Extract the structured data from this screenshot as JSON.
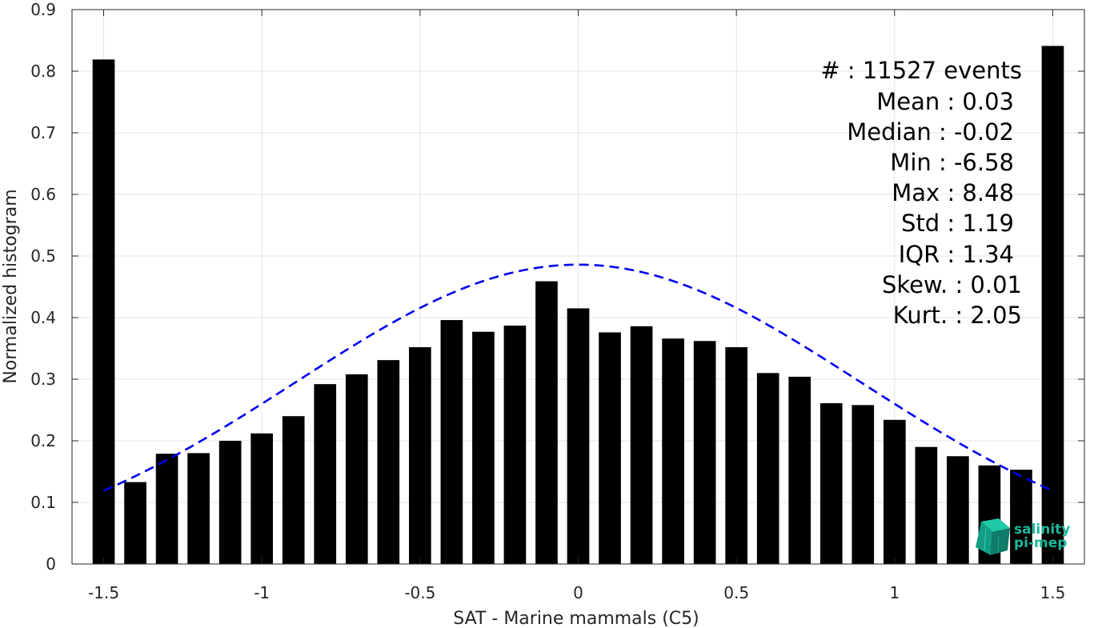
{
  "chart_data": {
    "type": "bar",
    "xlabel": "SAT - Marine mammals (C5)",
    "ylabel": "Normalized histogram",
    "xlim": [
      -1.6,
      1.6
    ],
    "ylim": [
      0,
      0.9
    ],
    "grid": true,
    "x_ticks": [
      -1.5,
      -1,
      -0.5,
      0,
      0.5,
      1,
      1.5
    ],
    "x_tick_labels": [
      "-1.5",
      "-1",
      "-0.5",
      "0",
      "0.5",
      "1",
      "1.5"
    ],
    "y_ticks": [
      0,
      0.1,
      0.2,
      0.3,
      0.4,
      0.5,
      0.6,
      0.7,
      0.8,
      0.9
    ],
    "y_tick_labels": [
      "0",
      "0.1",
      "0.2",
      "0.3",
      "0.4",
      "0.5",
      "0.6",
      "0.7",
      "0.8",
      "0.9"
    ],
    "bar_color": "#000000",
    "bar_width": 0.07,
    "bars": {
      "x": [
        -1.5,
        -1.4,
        -1.3,
        -1.2,
        -1.1,
        -1.0,
        -0.9,
        -0.8,
        -0.7,
        -0.6,
        -0.5,
        -0.4,
        -0.3,
        -0.2,
        -0.1,
        0.0,
        0.1,
        0.2,
        0.3,
        0.4,
        0.5,
        0.6,
        0.7,
        0.8,
        0.9,
        1.0,
        1.1,
        1.2,
        1.3,
        1.4,
        1.5
      ],
      "y": [
        0.819,
        0.133,
        0.179,
        0.18,
        0.2,
        0.212,
        0.24,
        0.292,
        0.308,
        0.331,
        0.352,
        0.396,
        0.377,
        0.387,
        0.459,
        0.415,
        0.376,
        0.386,
        0.366,
        0.362,
        0.352,
        0.31,
        0.304,
        0.261,
        0.258,
        0.234,
        0.19,
        0.175,
        0.16,
        0.153,
        0.841
      ]
    },
    "fit_curve": {
      "style": "dashed",
      "color": "#0000ee",
      "x_range": [
        -1.5,
        1.5
      ],
      "peak_at_zero": 0.486,
      "value_at_ends": 0.119
    }
  },
  "stats": {
    "count": "#  : 11527 events",
    "mean": "Mean : 0.03",
    "median": "Median : -0.02",
    "min": "Min : -6.58",
    "max": "Max : 8.48",
    "std": "Std : 1.19",
    "iqr": "IQR : 1.34",
    "skew": "Skew. : 0.01",
    "kurt": "Kurt. : 2.05"
  },
  "logo": {
    "line1": "salinity",
    "line2": "pi-mep",
    "color": "#1ab89a"
  }
}
